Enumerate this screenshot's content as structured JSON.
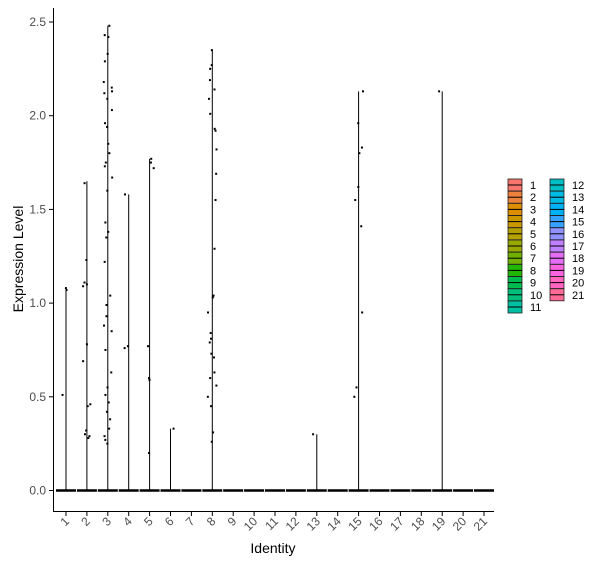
{
  "chart_data": {
    "type": "violin-jitter",
    "xlabel": "Identity",
    "ylabel": "Expression Level",
    "ylim": [
      -0.12,
      2.57
    ],
    "yticks": [
      0.0,
      0.5,
      1.0,
      1.5,
      2.0,
      2.5
    ],
    "ytick_labels": [
      "0.0",
      "0.5",
      "1.0",
      "1.5",
      "2.0",
      "2.5"
    ],
    "categories": [
      "1",
      "2",
      "3",
      "4",
      "5",
      "6",
      "7",
      "8",
      "9",
      "10",
      "11",
      "12",
      "13",
      "14",
      "15",
      "16",
      "17",
      "18",
      "19",
      "20",
      "21"
    ],
    "violin_max": [
      1.08,
      1.65,
      2.48,
      1.58,
      1.77,
      0.33,
      0,
      2.35,
      0,
      0,
      0,
      0,
      0.3,
      0,
      2.13,
      0,
      0,
      0,
      2.13,
      0,
      0
    ],
    "points": {
      "1": [
        1.08,
        1.07,
        0.51
      ],
      "2": [
        1.64,
        1.23,
        0.78,
        0.69,
        0.46,
        0.45,
        0.32,
        0.3,
        0.29,
        0.28,
        1.09,
        1.1,
        1.11
      ],
      "3": [
        2.48,
        2.43,
        2.42,
        2.33,
        2.29,
        2.18,
        2.15,
        2.13,
        2.12,
        2.09,
        2.03,
        1.96,
        1.94,
        1.85,
        1.8,
        1.75,
        1.73,
        1.67,
        1.6,
        1.43,
        1.38,
        1.35,
        1.22,
        1.04,
        0.99,
        0.93,
        0.88,
        0.85,
        0.75,
        0.63,
        0.55,
        0.51,
        0.47,
        0.42,
        0.38,
        0.33,
        0.29,
        0.27,
        0.25
      ],
      "4": [
        1.58,
        0.76,
        0.77
      ],
      "5": [
        1.77,
        1.75,
        1.72,
        0.77,
        0.6,
        0.59,
        0.2
      ],
      "6": [
        0.33
      ],
      "7": [],
      "8": [
        2.35,
        2.27,
        2.25,
        2.19,
        2.14,
        2.09,
        2.01,
        1.93,
        1.92,
        1.82,
        1.69,
        1.55,
        1.29,
        1.04,
        1.03,
        0.95,
        0.84,
        0.81,
        0.79,
        0.73,
        0.71,
        0.63,
        0.6,
        0.56,
        0.5,
        0.45,
        0.31,
        0.26
      ],
      "9": [],
      "10": [],
      "11": [],
      "12": [],
      "13": [
        0.3
      ],
      "14": [],
      "15": [
        2.13,
        1.96,
        1.83,
        1.8,
        1.62,
        1.55,
        1.41,
        0.95,
        0.55,
        0.5
      ],
      "16": [],
      "17": [],
      "18": [],
      "19": [
        2.13
      ],
      "20": [],
      "21": []
    },
    "legend": {
      "position": "right",
      "entries": [
        {
          "label": "1",
          "color": "#F8766D"
        },
        {
          "label": "2",
          "color": "#EC823C"
        },
        {
          "label": "3",
          "color": "#DD8D00"
        },
        {
          "label": "4",
          "color": "#CA9700"
        },
        {
          "label": "5",
          "color": "#B4A000"
        },
        {
          "label": "6",
          "color": "#98A800"
        },
        {
          "label": "7",
          "color": "#70B000"
        },
        {
          "label": "8",
          "color": "#1FB700"
        },
        {
          "label": "9",
          "color": "#00BB4E"
        },
        {
          "label": "10",
          "color": "#00BE7C"
        },
        {
          "label": "11",
          "color": "#00C0A1"
        },
        {
          "label": "12",
          "color": "#00BFC4"
        },
        {
          "label": "13",
          "color": "#00BAE3"
        },
        {
          "label": "14",
          "color": "#00B1F6"
        },
        {
          "label": "15",
          "color": "#35A2FF"
        },
        {
          "label": "16",
          "color": "#8F92FF"
        },
        {
          "label": "17",
          "color": "#BE80FF"
        },
        {
          "label": "18",
          "color": "#E46DF6"
        },
        {
          "label": "19",
          "color": "#F863DF"
        },
        {
          "label": "20",
          "color": "#FF64BF"
        },
        {
          "label": "21",
          "color": "#FF6B96"
        }
      ]
    },
    "grid": false
  }
}
